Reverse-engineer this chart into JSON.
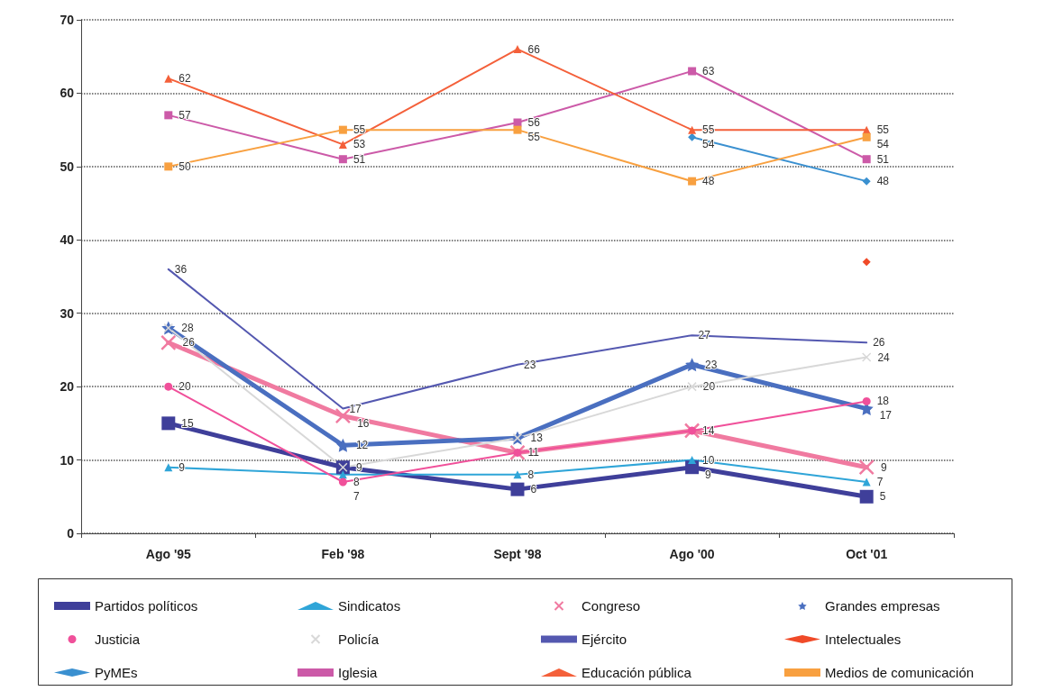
{
  "chart_data": {
    "type": "line",
    "categories": [
      "Ago '95",
      "Feb '98",
      "Sept '98",
      "Ago '00",
      "Oct '01"
    ],
    "ylim": [
      0,
      70
    ],
    "yticks": [
      0,
      10,
      20,
      30,
      40,
      50,
      60,
      70
    ],
    "grid": "y",
    "legend": "bottom",
    "data_labels": true,
    "series": [
      {
        "name": "Partidos políticos",
        "color": "#3f3f9a",
        "marker": "square",
        "values": [
          15,
          9,
          6,
          9,
          5
        ]
      },
      {
        "name": "Sindicatos",
        "color": "#2fa5d8",
        "marker": "triangle",
        "values": [
          9,
          8,
          8,
          10,
          7
        ]
      },
      {
        "name": "Congreso",
        "color": "#f07aa0",
        "marker": "cross",
        "values": [
          26,
          16,
          11,
          14,
          9
        ],
        "value_labels": [
          "26",
          "16",
          null,
          null,
          "9"
        ]
      },
      {
        "name": "Grandes empresas",
        "color": "#4a6fc0",
        "marker": "star",
        "values": [
          28,
          12,
          13,
          23,
          17
        ]
      },
      {
        "name": "Justicia",
        "color": "#f0509a",
        "marker": "circle",
        "values": [
          20,
          7,
          11,
          14,
          18
        ]
      },
      {
        "name": "Policía",
        "color": "#d8d8d8",
        "marker": "cross",
        "values": [
          28,
          9,
          13,
          20,
          24
        ],
        "value_labels": [
          null,
          null,
          null,
          "20",
          "24"
        ]
      },
      {
        "name": "Ejército",
        "color": "#5458b0",
        "marker": "none",
        "values": [
          36,
          17,
          23,
          27,
          26
        ]
      },
      {
        "name": "Intelectuales",
        "color": "#f04a28",
        "marker": "diamond",
        "values": [
          null,
          null,
          null,
          null,
          37
        ],
        "value_labels": [
          null,
          null,
          null,
          null,
          null
        ]
      },
      {
        "name": "PyMEs",
        "color": "#3a90d0",
        "marker": "diamond",
        "values": [
          null,
          null,
          null,
          54,
          48
        ]
      },
      {
        "name": "Iglesia",
        "color": "#cc5aa8",
        "marker": "square",
        "values": [
          57,
          51,
          56,
          63,
          51
        ]
      },
      {
        "name": "Educación pública",
        "color": "#f4603a",
        "marker": "triangle",
        "values": [
          62,
          53,
          66,
          55,
          55
        ]
      },
      {
        "name": "Medios de comunicación",
        "color": "#f8a040",
        "marker": "square",
        "values": [
          50,
          55,
          55,
          48,
          54
        ]
      }
    ]
  }
}
